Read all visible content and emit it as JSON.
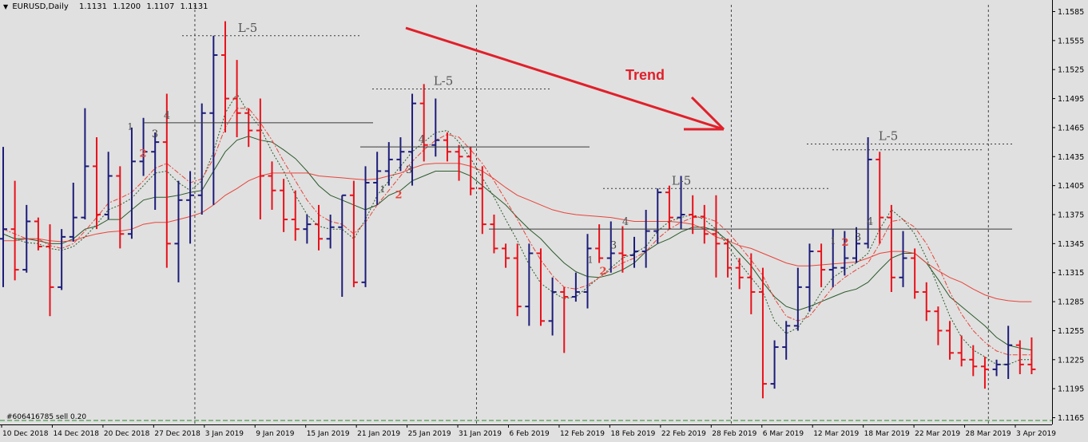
{
  "header": {
    "symbol": "EURUSD,Daily",
    "open": "1.1131",
    "high": "1.1200",
    "low": "1.1107",
    "close": "1.1131"
  },
  "order_label": "#606416785 sell 0.20",
  "trend_label": "Trend",
  "colors": {
    "background": "#e0e0e0",
    "bull_bar": "#1c1c7a",
    "bear_bar": "#e8111a",
    "ma_fast_green": "#2c5a2c",
    "ma_slow_red": "#e8443a",
    "trend_arrow": "#e0202a",
    "annotation_gray": "#555555",
    "annotation_red": "#e8443a"
  },
  "chart_data": {
    "type": "ohlc",
    "title": "EURUSD,Daily",
    "xlabel": "",
    "ylabel": "",
    "ylim": [
      1.1158,
      1.1592
    ],
    "yticks": [
      "1.1585",
      "1.1555",
      "1.1525",
      "1.1495",
      "1.1465",
      "1.1435",
      "1.1405",
      "1.1375",
      "1.1345",
      "1.1315",
      "1.1285",
      "1.1255",
      "1.1225",
      "1.1195",
      "1.1165"
    ],
    "xticks": [
      "10 Dec 2018",
      "14 Dec 2018",
      "20 Dec 2018",
      "27 Dec 2018",
      "3 Jan 2019",
      "9 Jan 2019",
      "15 Jan 2019",
      "21 Jan 2019",
      "25 Jan 2019",
      "31 Jan 2019",
      "6 Feb 2019",
      "12 Feb 2019",
      "18 Feb 2019",
      "22 Feb 2019",
      "28 Feb 2019",
      "6 Mar 2019",
      "12 Mar 2019",
      "18 Mar 2019",
      "22 Mar 2019",
      "28 Mar 2019",
      "3 Apr 2019"
    ],
    "grid": false,
    "period_separators": true,
    "series": [
      {
        "o": 1.135,
        "h": 1.1445,
        "l": 1.13,
        "c": 1.136
      },
      {
        "o": 1.136,
        "h": 1.141,
        "l": 1.1307,
        "c": 1.1318
      },
      {
        "o": 1.1318,
        "h": 1.1385,
        "l": 1.1315,
        "c": 1.1368
      },
      {
        "o": 1.1368,
        "h": 1.1372,
        "l": 1.1338,
        "c": 1.1342
      },
      {
        "o": 1.1342,
        "h": 1.1365,
        "l": 1.127,
        "c": 1.13
      },
      {
        "o": 1.13,
        "h": 1.136,
        "l": 1.1297,
        "c": 1.1352
      },
      {
        "o": 1.1352,
        "h": 1.1408,
        "l": 1.1347,
        "c": 1.1372
      },
      {
        "o": 1.1372,
        "h": 1.1485,
        "l": 1.137,
        "c": 1.1425
      },
      {
        "o": 1.1425,
        "h": 1.1455,
        "l": 1.136,
        "c": 1.1375
      },
      {
        "o": 1.1375,
        "h": 1.144,
        "l": 1.137,
        "c": 1.1415
      },
      {
        "o": 1.1415,
        "h": 1.1425,
        "l": 1.134,
        "c": 1.1355
      },
      {
        "o": 1.1355,
        "h": 1.1465,
        "l": 1.135,
        "c": 1.143
      },
      {
        "o": 1.143,
        "h": 1.1475,
        "l": 1.1415,
        "c": 1.144
      },
      {
        "o": 1.144,
        "h": 1.146,
        "l": 1.138,
        "c": 1.145
      },
      {
        "o": 1.145,
        "h": 1.15,
        "l": 1.132,
        "c": 1.1345
      },
      {
        "o": 1.1345,
        "h": 1.141,
        "l": 1.1305,
        "c": 1.139
      },
      {
        "o": 1.139,
        "h": 1.142,
        "l": 1.1345,
        "c": 1.1395
      },
      {
        "o": 1.1395,
        "h": 1.149,
        "l": 1.1375,
        "c": 1.148
      },
      {
        "o": 1.148,
        "h": 1.156,
        "l": 1.1385,
        "c": 1.154
      },
      {
        "o": 1.154,
        "h": 1.1575,
        "l": 1.146,
        "c": 1.1495
      },
      {
        "o": 1.1495,
        "h": 1.1535,
        "l": 1.1455,
        "c": 1.148
      },
      {
        "o": 1.148,
        "h": 1.1485,
        "l": 1.1445,
        "c": 1.1462
      },
      {
        "o": 1.1462,
        "h": 1.1495,
        "l": 1.137,
        "c": 1.1415
      },
      {
        "o": 1.1415,
        "h": 1.143,
        "l": 1.138,
        "c": 1.14
      },
      {
        "o": 1.14,
        "h": 1.1412,
        "l": 1.1357,
        "c": 1.137
      },
      {
        "o": 1.137,
        "h": 1.14,
        "l": 1.1348,
        "c": 1.136
      },
      {
        "o": 1.136,
        "h": 1.1375,
        "l": 1.1345,
        "c": 1.1365
      },
      {
        "o": 1.1365,
        "h": 1.1385,
        "l": 1.1338,
        "c": 1.135
      },
      {
        "o": 1.135,
        "h": 1.1375,
        "l": 1.134,
        "c": 1.1362
      },
      {
        "o": 1.1362,
        "h": 1.1395,
        "l": 1.129,
        "c": 1.1395
      },
      {
        "o": 1.1395,
        "h": 1.141,
        "l": 1.13,
        "c": 1.1305
      },
      {
        "o": 1.1305,
        "h": 1.1425,
        "l": 1.13,
        "c": 1.1408
      },
      {
        "o": 1.1408,
        "h": 1.144,
        "l": 1.1385,
        "c": 1.142
      },
      {
        "o": 1.142,
        "h": 1.145,
        "l": 1.1405,
        "c": 1.1432
      },
      {
        "o": 1.1432,
        "h": 1.1455,
        "l": 1.142,
        "c": 1.144
      },
      {
        "o": 1.144,
        "h": 1.15,
        "l": 1.1405,
        "c": 1.149
      },
      {
        "o": 1.149,
        "h": 1.151,
        "l": 1.143,
        "c": 1.1447
      },
      {
        "o": 1.1447,
        "h": 1.1495,
        "l": 1.1435,
        "c": 1.1452
      },
      {
        "o": 1.1452,
        "h": 1.146,
        "l": 1.143,
        "c": 1.144
      },
      {
        "o": 1.144,
        "h": 1.1447,
        "l": 1.141,
        "c": 1.1435
      },
      {
        "o": 1.1435,
        "h": 1.1445,
        "l": 1.1395,
        "c": 1.1402
      },
      {
        "o": 1.1402,
        "h": 1.1425,
        "l": 1.1355,
        "c": 1.1365
      },
      {
        "o": 1.1365,
        "h": 1.1375,
        "l": 1.1335,
        "c": 1.134
      },
      {
        "o": 1.134,
        "h": 1.1345,
        "l": 1.132,
        "c": 1.133
      },
      {
        "o": 1.133,
        "h": 1.1345,
        "l": 1.127,
        "c": 1.128
      },
      {
        "o": 1.128,
        "h": 1.1345,
        "l": 1.126,
        "c": 1.1335
      },
      {
        "o": 1.1335,
        "h": 1.134,
        "l": 1.126,
        "c": 1.1265
      },
      {
        "o": 1.1265,
        "h": 1.131,
        "l": 1.125,
        "c": 1.1295
      },
      {
        "o": 1.1295,
        "h": 1.13,
        "l": 1.1232,
        "c": 1.129
      },
      {
        "o": 1.129,
        "h": 1.1315,
        "l": 1.1285,
        "c": 1.1295
      },
      {
        "o": 1.1295,
        "h": 1.1355,
        "l": 1.1278,
        "c": 1.134
      },
      {
        "o": 1.134,
        "h": 1.1365,
        "l": 1.1325,
        "c": 1.133
      },
      {
        "o": 1.133,
        "h": 1.1368,
        "l": 1.1315,
        "c": 1.1335
      },
      {
        "o": 1.1335,
        "h": 1.1363,
        "l": 1.1315,
        "c": 1.1333
      },
      {
        "o": 1.1333,
        "h": 1.1352,
        "l": 1.132,
        "c": 1.1337
      },
      {
        "o": 1.1337,
        "h": 1.138,
        "l": 1.132,
        "c": 1.1358
      },
      {
        "o": 1.1358,
        "h": 1.1402,
        "l": 1.1345,
        "c": 1.1398
      },
      {
        "o": 1.1398,
        "h": 1.1405,
        "l": 1.136,
        "c": 1.1372
      },
      {
        "o": 1.1372,
        "h": 1.1415,
        "l": 1.136,
        "c": 1.1375
      },
      {
        "o": 1.1375,
        "h": 1.1395,
        "l": 1.1355,
        "c": 1.1373
      },
      {
        "o": 1.1373,
        "h": 1.1385,
        "l": 1.1345,
        "c": 1.1355
      },
      {
        "o": 1.1355,
        "h": 1.1395,
        "l": 1.131,
        "c": 1.1345
      },
      {
        "o": 1.1345,
        "h": 1.135,
        "l": 1.131,
        "c": 1.132
      },
      {
        "o": 1.132,
        "h": 1.133,
        "l": 1.1298,
        "c": 1.131
      },
      {
        "o": 1.131,
        "h": 1.1335,
        "l": 1.1272,
        "c": 1.1295
      },
      {
        "o": 1.1295,
        "h": 1.132,
        "l": 1.1185,
        "c": 1.12
      },
      {
        "o": 1.12,
        "h": 1.1245,
        "l": 1.1195,
        "c": 1.1238
      },
      {
        "o": 1.1238,
        "h": 1.1265,
        "l": 1.1225,
        "c": 1.126
      },
      {
        "o": 1.126,
        "h": 1.132,
        "l": 1.1255,
        "c": 1.13
      },
      {
        "o": 1.13,
        "h": 1.1345,
        "l": 1.1275,
        "c": 1.1337
      },
      {
        "o": 1.1337,
        "h": 1.1345,
        "l": 1.13,
        "c": 1.1318
      },
      {
        "o": 1.1318,
        "h": 1.136,
        "l": 1.13,
        "c": 1.132
      },
      {
        "o": 1.132,
        "h": 1.1358,
        "l": 1.1312,
        "c": 1.133
      },
      {
        "o": 1.133,
        "h": 1.1362,
        "l": 1.1325,
        "c": 1.1345
      },
      {
        "o": 1.1345,
        "h": 1.1455,
        "l": 1.134,
        "c": 1.1432
      },
      {
        "o": 1.1432,
        "h": 1.144,
        "l": 1.1345,
        "c": 1.1372
      },
      {
        "o": 1.1372,
        "h": 1.1385,
        "l": 1.1295,
        "c": 1.131
      },
      {
        "o": 1.131,
        "h": 1.1358,
        "l": 1.13,
        "c": 1.133
      },
      {
        "o": 1.133,
        "h": 1.134,
        "l": 1.1288,
        "c": 1.1295
      },
      {
        "o": 1.1295,
        "h": 1.1305,
        "l": 1.1265,
        "c": 1.1275
      },
      {
        "o": 1.1275,
        "h": 1.128,
        "l": 1.124,
        "c": 1.1255
      },
      {
        "o": 1.1255,
        "h": 1.1265,
        "l": 1.1225,
        "c": 1.1232
      },
      {
        "o": 1.1232,
        "h": 1.125,
        "l": 1.1218,
        "c": 1.1225
      },
      {
        "o": 1.1225,
        "h": 1.124,
        "l": 1.1208,
        "c": 1.1218
      },
      {
        "o": 1.1218,
        "h": 1.1228,
        "l": 1.1195,
        "c": 1.1215
      },
      {
        "o": 1.1215,
        "h": 1.1225,
        "l": 1.1208,
        "c": 1.122
      },
      {
        "o": 1.122,
        "h": 1.126,
        "l": 1.1205,
        "c": 1.124
      },
      {
        "o": 1.124,
        "h": 1.1245,
        "l": 1.121,
        "c": 1.122
      },
      {
        "o": 1.122,
        "h": 1.1248,
        "l": 1.121,
        "c": 1.1215
      }
    ],
    "moving_averages": [
      {
        "style": "solid",
        "color": "green",
        "values": [
          1.1355,
          1.135,
          1.135,
          1.1348,
          1.1345,
          1.1345,
          1.135,
          1.136,
          1.1363,
          1.137,
          1.137,
          1.138,
          1.139,
          1.1393,
          1.1393,
          1.1395,
          1.1398,
          1.14,
          1.142,
          1.144,
          1.1452,
          1.1456,
          1.1452,
          1.145,
          1.1442,
          1.1433,
          1.142,
          1.1405,
          1.1395,
          1.139,
          1.1385,
          1.138,
          1.1385,
          1.1395,
          1.14,
          1.141,
          1.1415,
          1.142,
          1.142,
          1.142,
          1.1415,
          1.1405,
          1.1395,
          1.1385,
          1.1372,
          1.136,
          1.135,
          1.1337,
          1.1325,
          1.1316,
          1.1311,
          1.131,
          1.1313,
          1.1318,
          1.1325,
          1.1337,
          1.1345,
          1.135,
          1.1357,
          1.1362,
          1.1362,
          1.1358,
          1.1348,
          1.1335,
          1.1322,
          1.1305,
          1.129,
          1.128,
          1.1276,
          1.128,
          1.1285,
          1.129,
          1.1295,
          1.1298,
          1.1305,
          1.1318,
          1.133,
          1.1335,
          1.1335,
          1.1325,
          1.1308,
          1.129,
          1.128,
          1.127,
          1.126,
          1.1248,
          1.124,
          1.1237,
          1.1235
        ]
      },
      {
        "style": "solid",
        "color": "red",
        "values": [
          1.1348,
          1.1348,
          1.135,
          1.135,
          1.1348,
          1.1347,
          1.1348,
          1.1352,
          1.1355,
          1.1357,
          1.1358,
          1.136,
          1.1365,
          1.1367,
          1.1367,
          1.137,
          1.1373,
          1.1377,
          1.1385,
          1.1395,
          1.1402,
          1.141,
          1.1415,
          1.1418,
          1.1418,
          1.1418,
          1.1418,
          1.1415,
          1.1414,
          1.1413,
          1.1412,
          1.1411,
          1.1412,
          1.1415,
          1.1418,
          1.1423,
          1.1427,
          1.1428,
          1.1428,
          1.1428,
          1.1425,
          1.142,
          1.1412,
          1.1403,
          1.1395,
          1.139,
          1.1385,
          1.138,
          1.1377,
          1.1375,
          1.1374,
          1.1373,
          1.1372,
          1.137,
          1.1368,
          1.1368,
          1.1368,
          1.1368,
          1.1367,
          1.1365,
          1.136,
          1.1352,
          1.1348,
          1.1343,
          1.134,
          1.1335,
          1.133,
          1.1325,
          1.1322,
          1.1322,
          1.1323,
          1.1324,
          1.1325,
          1.1326,
          1.133,
          1.1335,
          1.1337,
          1.1337,
          1.1335,
          1.1325,
          1.1317,
          1.131,
          1.1305,
          1.1298,
          1.1292,
          1.1288,
          1.1286,
          1.1285,
          1.1285
        ]
      },
      {
        "style": "dashed",
        "color": "green",
        "values": [
          1.1355,
          1.135,
          1.1346,
          1.1345,
          1.134,
          1.1338,
          1.1342,
          1.1352,
          1.1365,
          1.138,
          1.1385,
          1.1392,
          1.1405,
          1.1418,
          1.142,
          1.1408,
          1.14,
          1.141,
          1.144,
          1.148,
          1.15,
          1.148,
          1.1465,
          1.144,
          1.142,
          1.1395,
          1.1375,
          1.1363,
          1.136,
          1.136,
          1.135,
          1.137,
          1.1395,
          1.141,
          1.1425,
          1.144,
          1.145,
          1.146,
          1.1462,
          1.145,
          1.1433,
          1.1413,
          1.1393,
          1.137,
          1.1348,
          1.1323,
          1.1304,
          1.1295,
          1.1288,
          1.129,
          1.13,
          1.131,
          1.132,
          1.133,
          1.1335,
          1.1342,
          1.1358,
          1.1368,
          1.1372,
          1.1375,
          1.137,
          1.136,
          1.1343,
          1.1325,
          1.131,
          1.1295,
          1.1265,
          1.1252,
          1.1258,
          1.1275,
          1.1295,
          1.131,
          1.1318,
          1.1325,
          1.1335,
          1.136,
          1.138,
          1.137,
          1.1355,
          1.133,
          1.13,
          1.127,
          1.1248,
          1.1235,
          1.1228,
          1.122,
          1.122,
          1.1225,
          1.1225
        ]
      },
      {
        "style": "dashdot",
        "color": "red",
        "values": [
          1.136,
          1.1355,
          1.135,
          1.135,
          1.1343,
          1.134,
          1.1345,
          1.1358,
          1.1372,
          1.1387,
          1.1392,
          1.1398,
          1.141,
          1.1423,
          1.1428,
          1.1418,
          1.1408,
          1.1412,
          1.1433,
          1.1465,
          1.1485,
          1.1485,
          1.147,
          1.1452,
          1.143,
          1.141,
          1.139,
          1.1375,
          1.1368,
          1.1365,
          1.1355,
          1.1367,
          1.1385,
          1.14,
          1.1415,
          1.143,
          1.1442,
          1.1452,
          1.1458,
          1.1455,
          1.1442,
          1.1428,
          1.141,
          1.139,
          1.137,
          1.1348,
          1.1328,
          1.1312,
          1.13,
          1.1298,
          1.1302,
          1.131,
          1.1318,
          1.1325,
          1.133,
          1.1337,
          1.135,
          1.136,
          1.1367,
          1.1372,
          1.1372,
          1.1368,
          1.1357,
          1.1343,
          1.1328,
          1.1312,
          1.1288,
          1.127,
          1.1265,
          1.127,
          1.1285,
          1.13,
          1.131,
          1.1318,
          1.1325,
          1.1345,
          1.1368,
          1.137,
          1.1362,
          1.1345,
          1.1322,
          1.1295,
          1.1272,
          1.1255,
          1.1243,
          1.1234,
          1.123,
          1.123,
          1.123
        ]
      }
    ],
    "annotations": {
      "levels": [
        {
          "label": "L-5",
          "value": 1.156
        },
        {
          "label": "4",
          "value": 1.147
        },
        {
          "label": "L-5",
          "value": 1.1505
        },
        {
          "label": "4",
          "value": 1.1445
        },
        {
          "label": "L-5",
          "value": 1.1402
        },
        {
          "label": "4",
          "value": 1.136
        },
        {
          "label": "L-5",
          "value": 1.1448
        },
        {
          "label": "4",
          "value": 1.136
        }
      ],
      "wave_labels": [
        "1",
        "2",
        "3",
        "1",
        "2",
        "3",
        "1",
        "2",
        "3",
        "1",
        "2",
        "3"
      ]
    }
  }
}
